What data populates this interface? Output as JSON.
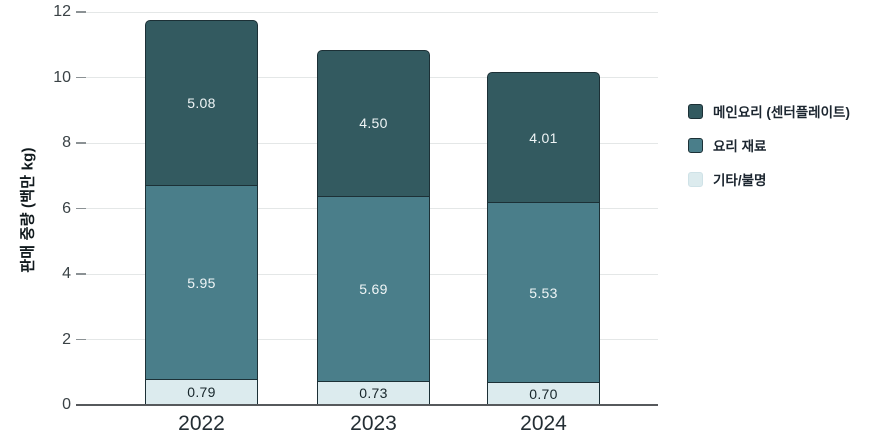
{
  "chart_data": {
    "type": "bar",
    "stacked": true,
    "title": "",
    "xlabel": "",
    "ylabel": "판매 중량 (백만 kg)",
    "ylim": [
      0,
      12
    ],
    "yticks": [
      0,
      2,
      4,
      6,
      8,
      10,
      12
    ],
    "grid": true,
    "legend_position": "right",
    "categories": [
      "2022",
      "2023",
      "2024"
    ],
    "series": [
      {
        "name": "메인요리 (센터플레이트)",
        "color": "#335A60",
        "values": [
          5.08,
          4.5,
          4.01
        ],
        "labels": [
          "5.08",
          "4.50",
          "4.01"
        ]
      },
      {
        "name": "요리 재료",
        "color": "#4A7E8A",
        "values": [
          5.95,
          5.69,
          5.53
        ],
        "labels": [
          "5.95",
          "5.69",
          "5.53"
        ]
      },
      {
        "name": "기타/불명",
        "color": "#DCEBEE",
        "values": [
          0.79,
          0.73,
          0.7
        ],
        "labels": [
          "0.79",
          "0.73",
          "0.70"
        ]
      }
    ],
    "style_colors": {
      "gridline": "#E4E7E7",
      "axis_line": "#56595C",
      "tick_label": "#3A4246",
      "segment_border": "#1C3036",
      "value_label_light": "#EFF5F6",
      "value_label_dark": "#17262B"
    }
  }
}
